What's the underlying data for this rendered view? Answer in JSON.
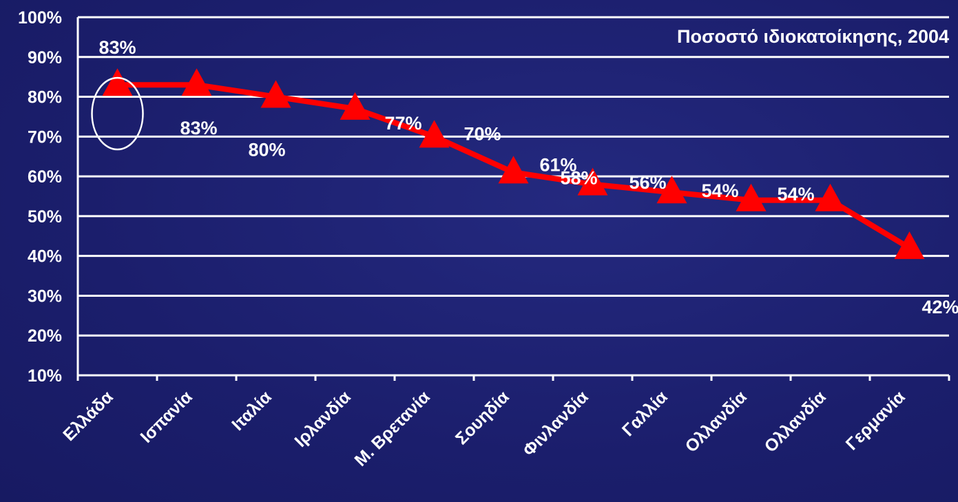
{
  "chart_data": {
    "type": "line",
    "title": "Ποσοστό ιδιοκατοίκησης, 2004",
    "xlabel": "",
    "ylabel": "",
    "categories": [
      "Ελλάδα",
      "Ισπανία",
      "Ιταλία",
      "Ιρλανδία",
      "Μ. Βρετανία",
      "Σουηδία",
      "Φινλανδία",
      "Γαλλία",
      "Ολλανδία",
      "Ολλανδία",
      "Γερμανία"
    ],
    "series": [
      {
        "values": [
          83,
          83,
          80,
          77,
          70,
          61,
          58,
          56,
          54,
          54,
          42
        ],
        "data_labels": [
          "83%",
          "83%",
          "80%",
          "77%",
          "70%",
          "61%",
          "58%",
          "56%",
          "54%",
          "54%",
          "42%"
        ]
      }
    ],
    "ylim": [
      10,
      100
    ],
    "yticks": [
      "10%",
      "20%",
      "30%",
      "40%",
      "50%",
      "60%",
      "70%",
      "80%",
      "90%",
      "100%"
    ],
    "grid": true,
    "highlight": "circle around first point (Ελλάδα)",
    "colors": {
      "background": "#1c1f6e",
      "line": "#ff0000",
      "marker": "#ff0000",
      "grid": "#ffffff",
      "text": "#ffffff"
    }
  }
}
